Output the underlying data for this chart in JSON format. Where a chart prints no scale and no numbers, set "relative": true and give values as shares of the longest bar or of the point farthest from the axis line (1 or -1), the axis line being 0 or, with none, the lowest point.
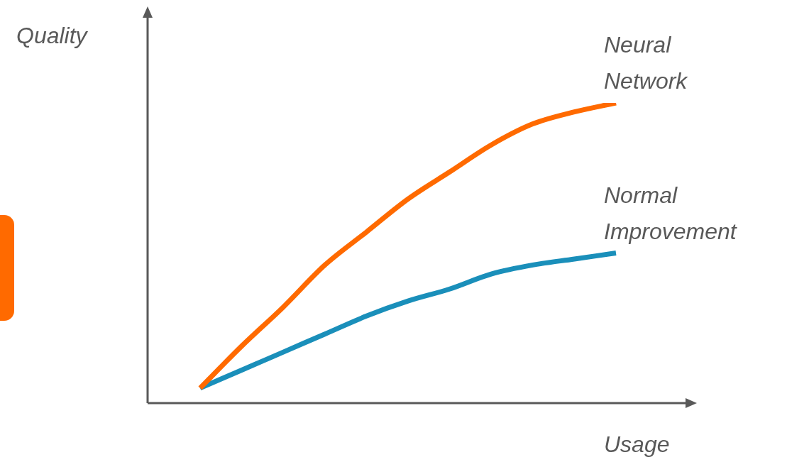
{
  "chart_data": {
    "type": "line",
    "relative": true,
    "xlabel": "Usage",
    "ylabel": "Quality",
    "categories": [
      null,
      null,
      null,
      null,
      null,
      null,
      null,
      null,
      null,
      null,
      null
    ],
    "series": [
      {
        "name": "Neural Network",
        "color": "#ff6a00",
        "values": [
          0.05,
          0.19,
          0.32,
          0.46,
          0.57,
          0.68,
          0.77,
          0.86,
          0.93,
          0.97,
          1
        ]
      },
      {
        "name": "Normal Improvement",
        "color": "#1a8fba",
        "values": [
          0.05,
          0.11,
          0.17,
          0.23,
          0.29,
          0.34,
          0.38,
          0.43,
          0.46,
          0.48,
          0.5
        ]
      }
    ],
    "legend": false,
    "marker": "none",
    "line_style": "solid"
  }
}
